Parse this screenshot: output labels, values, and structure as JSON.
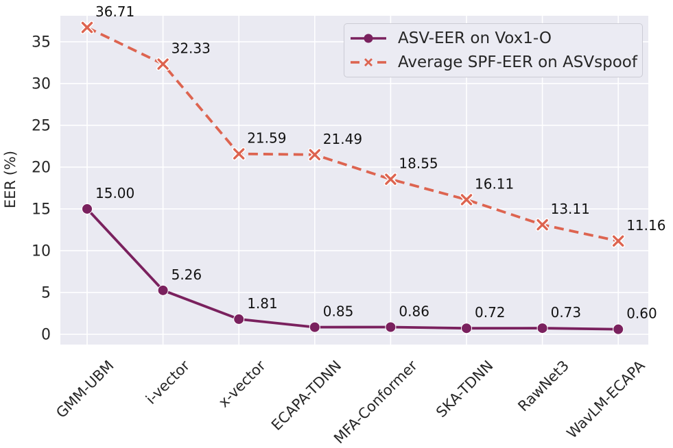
{
  "chart_data": {
    "type": "line",
    "categories": [
      "GMM-UBM",
      "i-vector",
      "x-vector",
      "ECAPA-TDNN",
      "MFA-Conformer",
      "SKA-TDNN",
      "RawNet3",
      "WavLM-ECAPA"
    ],
    "series": [
      {
        "name": "ASV-EER on Vox1-O",
        "values": [
          15.0,
          5.26,
          1.81,
          0.85,
          0.86,
          0.72,
          0.73,
          0.6
        ],
        "labels": [
          "15.00",
          "5.26",
          "1.81",
          "0.85",
          "0.86",
          "0.72",
          "0.73",
          "0.60"
        ],
        "color": "#7a215e",
        "marker": "circle",
        "line_style": "solid"
      },
      {
        "name": "Average SPF-EER on ASVspoof",
        "values": [
          36.71,
          32.33,
          21.59,
          21.49,
          18.55,
          16.11,
          13.11,
          11.16
        ],
        "labels": [
          "36.71",
          "32.33",
          "21.59",
          "21.49",
          "18.55",
          "16.11",
          "13.11",
          "11.16"
        ],
        "color": "#dd6450",
        "marker": "x",
        "line_style": "dashed"
      }
    ],
    "title": "",
    "xlabel": "",
    "ylabel": "EER (%)",
    "yticks": [
      0,
      5,
      10,
      15,
      20,
      25,
      30,
      35
    ],
    "ylim": [
      -1.23,
      38.11
    ],
    "grid": true,
    "legend_position": "upper right",
    "colors": {
      "plot_background": "#eaeaf2",
      "grid": "#ffffff",
      "tick_text": "#262626",
      "data_label_text": "#111111",
      "legend_background": "#ebebf3",
      "legend_border": "#cbcbd4"
    }
  }
}
